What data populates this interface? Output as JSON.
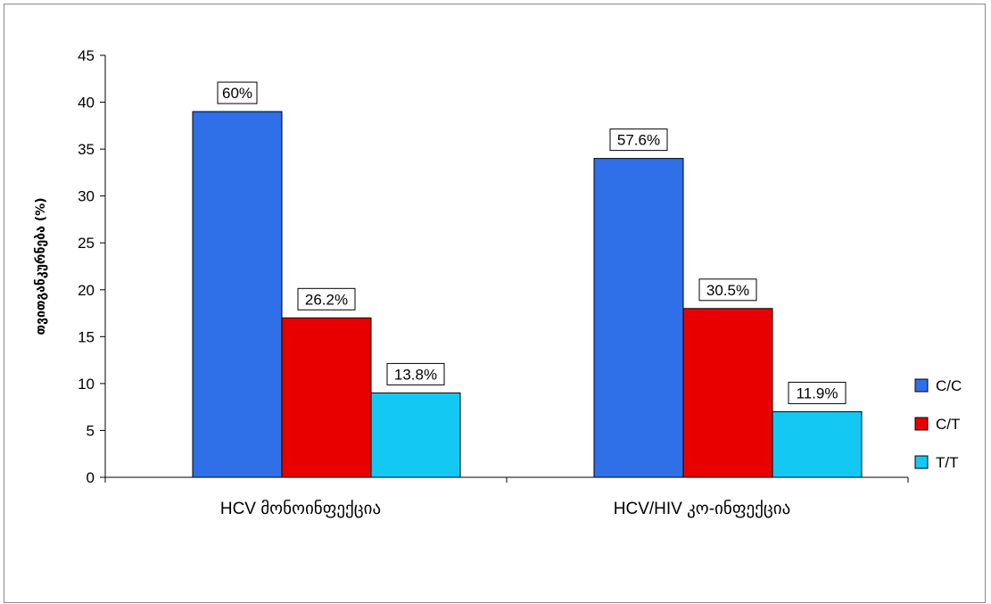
{
  "chart_data": {
    "type": "bar",
    "title": "",
    "xlabel": "",
    "ylabel": "თვითგანკურნება (%)",
    "ylim": [
      0,
      45
    ],
    "yticks": [
      0,
      5,
      10,
      15,
      20,
      25,
      30,
      35,
      40,
      45
    ],
    "categories": [
      "HCV  მონოინფექცია",
      "HCV/HIV კო-ინფექცია"
    ],
    "series": [
      {
        "name": "C/C",
        "color": "#2f6fe8",
        "values": [
          39,
          34
        ],
        "labels": [
          "60%",
          "57.6%"
        ]
      },
      {
        "name": "C/T",
        "color": "#e80000",
        "values": [
          17,
          18
        ],
        "labels": [
          "26.2%",
          "30.5%"
        ]
      },
      {
        "name": "T/T",
        "color": "#14c8f4",
        "values": [
          9,
          7
        ],
        "labels": [
          "13.8%",
          "11.9%"
        ]
      }
    ],
    "legend_position": "right",
    "grid": false
  }
}
